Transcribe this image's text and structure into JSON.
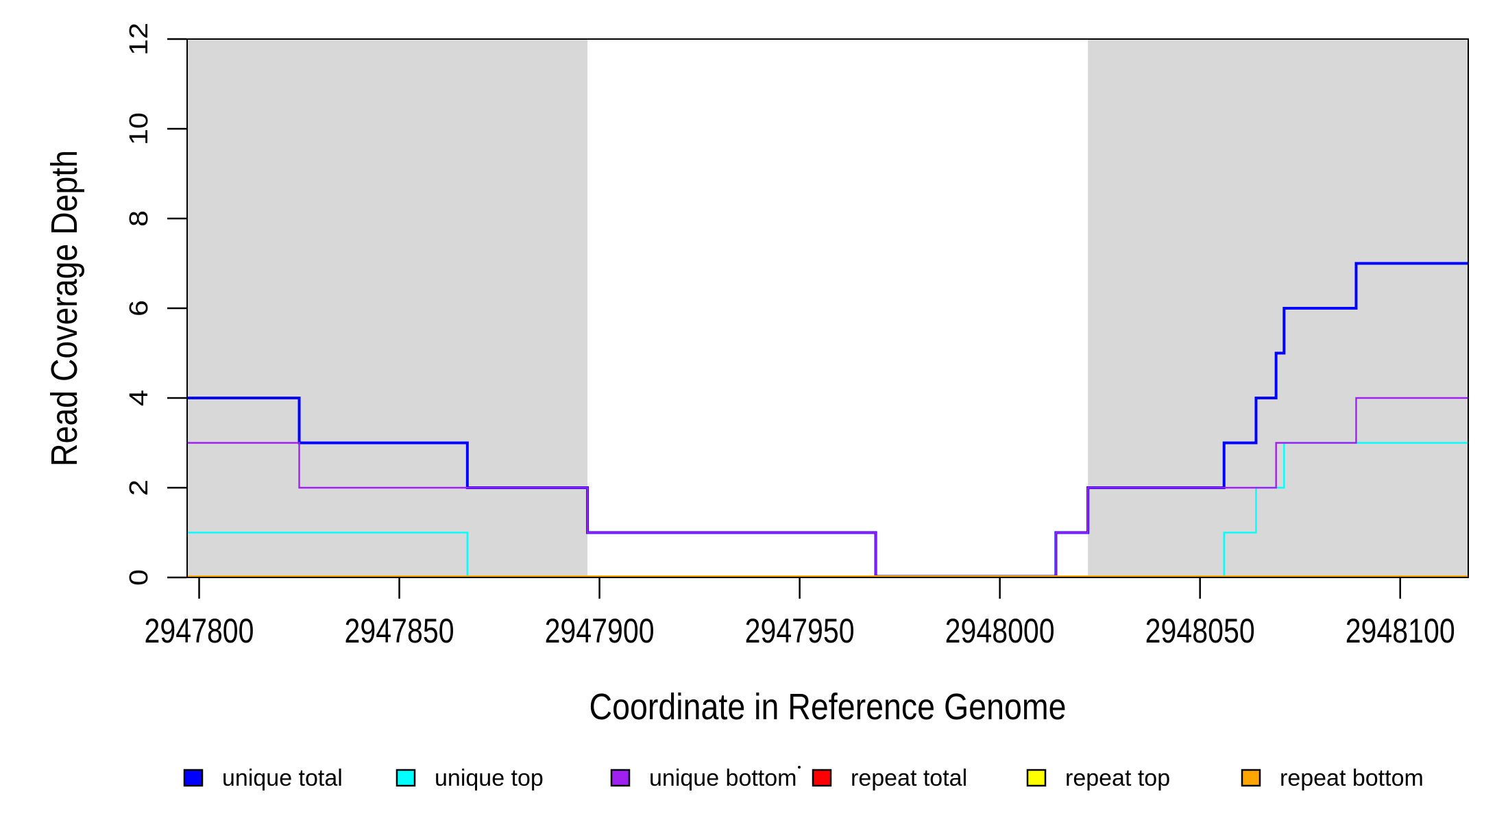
{
  "chart_data": {
    "type": "line",
    "subtype": "step-coverage-plot",
    "title": "",
    "xlabel": "Coordinate in Reference Genome",
    "ylabel": "Read Coverage Depth",
    "xlim": [
      2947797,
      2948117
    ],
    "ylim": [
      0,
      12
    ],
    "xticks": [
      2947800,
      2947850,
      2947900,
      2947950,
      2948000,
      2948050,
      2948100
    ],
    "yticks": [
      0,
      2,
      4,
      6,
      8,
      10,
      12
    ],
    "grid": "off",
    "background_color": "#ffffff",
    "region_color": "#d8d8d8",
    "box_color": "#000000",
    "shaded_regions": [
      {
        "x0": 2947797,
        "x1": 2947897
      },
      {
        "x0": 2948022,
        "x1": 2948117
      }
    ],
    "series": [
      {
        "name": "unique total",
        "color": "#0000ff",
        "width": 4,
        "points": [
          [
            2947797,
            4
          ],
          [
            2947825,
            3
          ],
          [
            2947867,
            2
          ],
          [
            2947897,
            1
          ],
          [
            2947969,
            0
          ],
          [
            2948014,
            1
          ],
          [
            2948022,
            2
          ],
          [
            2948056,
            3
          ],
          [
            2948064,
            4
          ],
          [
            2948069,
            5
          ],
          [
            2948071,
            6
          ],
          [
            2948089,
            7
          ],
          [
            2948117,
            7
          ]
        ]
      },
      {
        "name": "unique top",
        "color": "#00ffff",
        "width": 2.4,
        "points": [
          [
            2947797,
            1
          ],
          [
            2947867,
            0
          ],
          [
            2948056,
            1
          ],
          [
            2948064,
            2
          ],
          [
            2948071,
            3
          ],
          [
            2948117,
            3
          ]
        ]
      },
      {
        "name": "unique bottom",
        "color": "#a020f0",
        "width": 2.4,
        "points": [
          [
            2947797,
            3
          ],
          [
            2947825,
            2
          ],
          [
            2947897,
            1
          ],
          [
            2947969,
            0
          ],
          [
            2948014,
            1
          ],
          [
            2948022,
            2
          ],
          [
            2948069,
            3
          ],
          [
            2948089,
            4
          ],
          [
            2948117,
            4
          ]
        ]
      },
      {
        "name": "repeat total",
        "color": "#ff0000",
        "width": 2.4,
        "points": [
          [
            2947797,
            0
          ],
          [
            2948117,
            0
          ]
        ]
      },
      {
        "name": "repeat top",
        "color": "#ffff00",
        "width": 2.4,
        "points": [
          [
            2947797,
            0
          ],
          [
            2948117,
            0
          ]
        ]
      },
      {
        "name": "repeat bottom",
        "color": "#ffa500",
        "width": 3,
        "points": [
          [
            2947797,
            0
          ],
          [
            2948117,
            0
          ]
        ]
      }
    ],
    "legend": {
      "position": "bottom",
      "items": [
        {
          "label": "unique total",
          "color": "#0000ff"
        },
        {
          "label": "unique top",
          "color": "#00ffff"
        },
        {
          "label": "unique bottom",
          "color": "#a020f0"
        },
        {
          "label": "repeat total",
          "color": "#ff0000"
        },
        {
          "label": "repeat top",
          "color": "#ffff00"
        },
        {
          "label": "repeat bottom",
          "color": "#ffa500"
        }
      ]
    },
    "annotations": {
      "stray_dot": {
        "x": 1166,
        "y": 1120
      }
    }
  }
}
